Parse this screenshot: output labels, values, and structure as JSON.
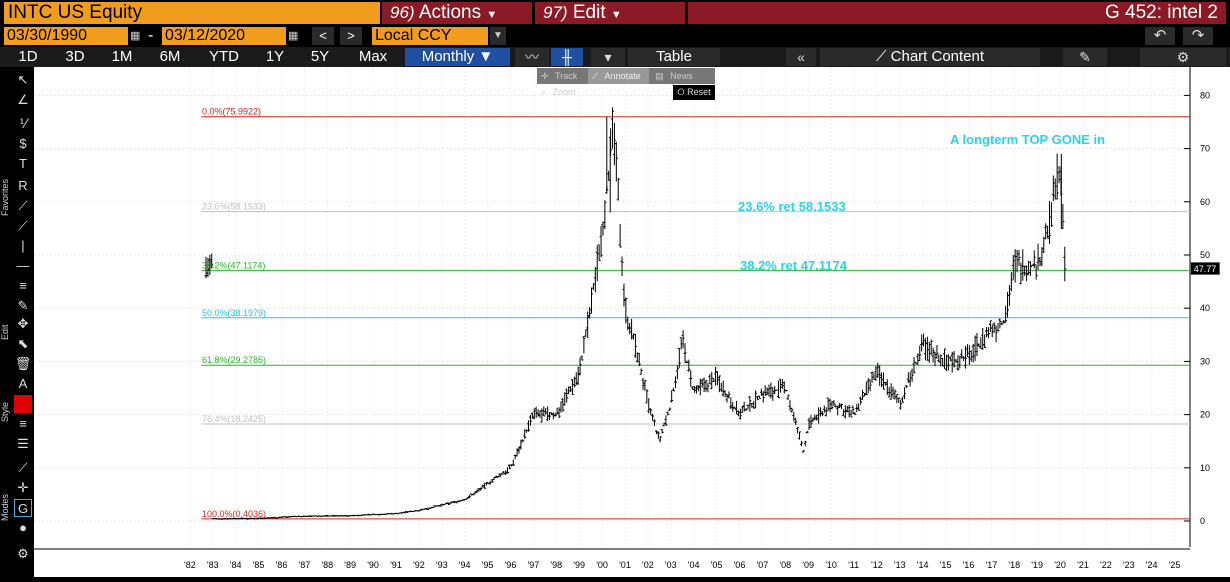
{
  "header": {
    "ticker": "INTC US Equity",
    "actions_num": "96)",
    "actions": "Actions",
    "edit_num": "97)",
    "edit": "Edit",
    "title": "G 452: intel 2"
  },
  "dates": {
    "start": "03/30/1990",
    "sep": "-",
    "end": "03/12/2020",
    "currency": "Local CCY"
  },
  "periods": [
    "1D",
    "3D",
    "1M",
    "6M",
    "YTD",
    "1Y",
    "5Y",
    "Max"
  ],
  "frequency": "Monthly ▼",
  "toolbar": {
    "table": "Table",
    "chart_content": "Chart Content"
  },
  "floatbar": {
    "items": [
      "Track",
      "Annotate",
      "News",
      "Zoom"
    ],
    "reset": "Reset"
  },
  "side_tabs": [
    "Favorites",
    "Edit",
    "Style",
    "Modes"
  ],
  "y_ticks": [
    "80",
    "70",
    "60",
    "50",
    "40",
    "30",
    "20",
    "10",
    "0"
  ],
  "last_price": "47.77",
  "x_ticks": [
    "'82",
    "'83",
    "'84",
    "'85",
    "'86",
    "'87",
    "'88",
    "'89",
    "'90",
    "'91",
    "'92",
    "'93",
    "'94",
    "'95",
    "'96",
    "'97",
    "'98",
    "'99",
    "'00",
    "'01",
    "'02",
    "'03",
    "'04",
    "'05",
    "'06",
    "'07",
    "'08",
    "'09",
    "'10",
    "'11",
    "'12",
    "'13",
    "'14",
    "'15",
    "'16",
    "'17",
    "'18",
    "'19",
    "'20",
    "'21",
    "'22",
    "'23",
    "'24",
    "'25"
  ],
  "fib_levels": [
    {
      "label": "0.0%(75.9922)",
      "value": 75.9922,
      "color": "#e02020"
    },
    {
      "label": "23.6%(58.1533)",
      "value": 58.1533,
      "color": "#c0c0c0"
    },
    {
      "label": "38.2%(47.1174)",
      "value": 47.1174,
      "color": "#20c020"
    },
    {
      "label": "50.0%(38.1979)",
      "value": 38.1979,
      "color": "#20c8e0"
    },
    {
      "label": "61.8%(29.2785)",
      "value": 29.2785,
      "color": "#20c020"
    },
    {
      "label": "76.4%(18.2425)",
      "value": 18.2425,
      "color": "#c0c0c0"
    },
    {
      "label": "100.0%(0.4036)",
      "value": 0.4036,
      "color": "#e02020"
    }
  ],
  "annotations": [
    "A longterm TOP GONE in",
    "23.6% ret 58.1533",
    "38.2% ret 47.1174"
  ],
  "chart_data": {
    "type": "ohlc",
    "x": [
      1983,
      1985,
      1987,
      1989,
      1990,
      1991,
      1992,
      1993,
      1994,
      1995,
      1996,
      1997,
      1998,
      1999,
      1999.5,
      2000,
      2000.5,
      2001,
      2001.5,
      2002,
      2002.5,
      2003,
      2003.5,
      2004,
      2005,
      2006,
      2007,
      2008,
      2008.8,
      2009,
      2010,
      2011,
      2012,
      2013,
      2014,
      2015,
      2016,
      2017,
      2017.5,
      2018,
      2019,
      2019.5,
      2020,
      2020.2
    ],
    "y": [
      0.4,
      0.5,
      0.9,
      1.0,
      1.2,
      1.4,
      2.0,
      3.0,
      4.0,
      7.0,
      10,
      20,
      20,
      28,
      40,
      55,
      74,
      40,
      32,
      22,
      15,
      22,
      34,
      24,
      27,
      20,
      24,
      25,
      13,
      18,
      22,
      20,
      28,
      22,
      33,
      30,
      31,
      36,
      37,
      48,
      48,
      55,
      68,
      47.77
    ],
    "ylim": [
      0,
      85
    ]
  }
}
